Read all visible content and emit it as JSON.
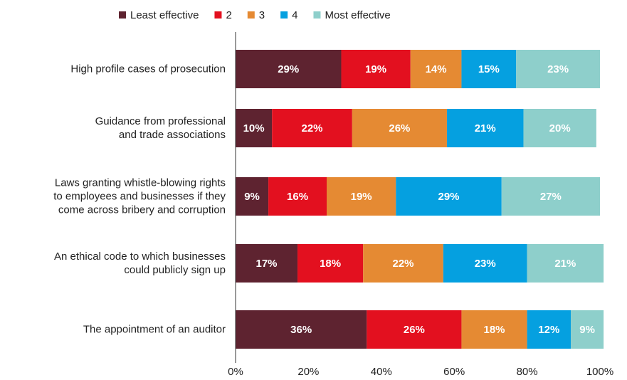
{
  "chart_data": {
    "type": "stacked-barh",
    "categories": [
      "High profile cases of prosecution",
      "Guidance from professional\nand trade associations",
      "Laws granting whistle-blowing rights\nto employees and businesses if they\ncome across bribery and corruption",
      "An ethical code to which businesses\ncould publicly sign up",
      "The appointment of an auditor"
    ],
    "series": [
      {
        "name": "Least effective",
        "color": "#5e2330",
        "values": [
          29,
          10,
          9,
          17,
          36
        ],
        "value_labels": [
          "29%",
          "10%",
          "9%",
          "17%",
          "36%"
        ]
      },
      {
        "name": "2",
        "color": "#e3101f",
        "values": [
          19,
          22,
          16,
          18,
          26
        ],
        "value_labels": [
          "19%",
          "22%",
          "16%",
          "18%",
          "26%"
        ]
      },
      {
        "name": "3",
        "color": "#e58a33",
        "values": [
          14,
          26,
          19,
          22,
          18
        ],
        "value_labels": [
          "14%",
          "26%",
          "19%",
          "22%",
          "18%"
        ]
      },
      {
        "name": "4",
        "color": "#05a0e0",
        "values": [
          15,
          21,
          29,
          23,
          12
        ],
        "value_labels": [
          "15%",
          "21%",
          "29%",
          "23%",
          "12%"
        ]
      },
      {
        "name": "Most effective",
        "color": "#8ecfcb",
        "values": [
          23,
          20,
          27,
          21,
          9
        ],
        "value_labels": [
          "23%",
          "20%",
          "27%",
          "21%",
          "9%"
        ]
      }
    ],
    "xlim": [
      0,
      100
    ],
    "xticks": [
      {
        "value": 0,
        "label": "0%"
      },
      {
        "value": 20,
        "label": "20%"
      },
      {
        "value": 40,
        "label": "40%"
      },
      {
        "value": 60,
        "label": "60%"
      },
      {
        "value": 80,
        "label": "80%"
      },
      {
        "value": 100,
        "label": "100%"
      }
    ],
    "legend": "top"
  }
}
